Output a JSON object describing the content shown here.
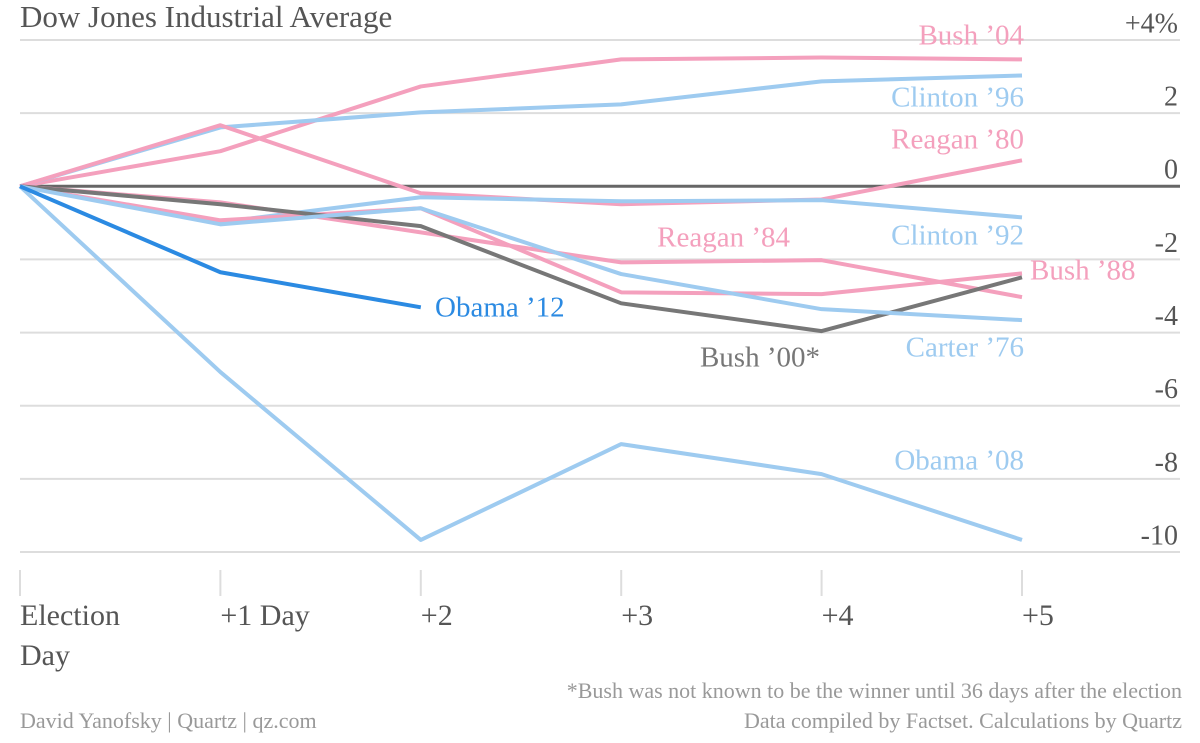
{
  "chart_data": {
    "type": "line",
    "title": "Dow Jones Industrial Average",
    "categories": [
      "Election Day",
      "+1 Day",
      "+2",
      "+3",
      "+4",
      "+5"
    ],
    "ylim": [
      -10,
      4
    ],
    "yticks": [
      {
        "value": 4,
        "label": "+4%"
      },
      2,
      0,
      -2,
      -4,
      -6,
      -8,
      -10
    ],
    "grid": true,
    "series": [
      {
        "name": "Bush ’04",
        "color": "#f4a0bd",
        "values": [
          0,
          0.96,
          2.73,
          3.47,
          3.52,
          3.47
        ]
      },
      {
        "name": "Clinton ’96",
        "color": "#9ecbf0",
        "values": [
          0,
          1.61,
          2.02,
          2.24,
          2.87,
          3.03
        ]
      },
      {
        "name": "Reagan ’80",
        "color": "#f4a0bd",
        "values": [
          0,
          1.67,
          -0.19,
          -0.49,
          -0.36,
          0.71
        ]
      },
      {
        "name": "Clinton ’92",
        "color": "#9ecbf0",
        "values": [
          0,
          -0.98,
          -0.3,
          -0.41,
          -0.38,
          -0.85
        ]
      },
      {
        "name": "Reagan ’84",
        "color": "#f4a0bd",
        "values": [
          0,
          -0.44,
          -1.26,
          -2.08,
          -2.02,
          -3.03
        ]
      },
      {
        "name": "Bush ’88",
        "color": "#f4a0bd",
        "values": [
          0,
          -0.93,
          -0.6,
          -2.9,
          -2.95,
          -2.38
        ]
      },
      {
        "name": "Bush ’00*",
        "color": "#777777",
        "values": [
          0,
          -0.49,
          -1.09,
          -3.2,
          -3.96,
          -2.49
        ]
      },
      {
        "name": "Carter ’76",
        "color": "#9ecbf0",
        "values": [
          0,
          -1.04,
          -0.6,
          -2.4,
          -3.36,
          -3.66
        ]
      },
      {
        "name": "Obama ’08",
        "color": "#9ecbf0",
        "values": [
          0,
          -5.08,
          -9.67,
          -7.05,
          -7.87,
          -9.67
        ]
      },
      {
        "name": "Obama ’12",
        "color": "#2b8ae2",
        "values": [
          0,
          -2.35,
          -3.31,
          null,
          null,
          null
        ]
      }
    ],
    "note": "*Bush was not known to be the winner until 36 days after the election",
    "source": "David Yanofsky | Quartz | qz.com",
    "credit": "Data compiled by Factset. Calculations by Quartz"
  }
}
